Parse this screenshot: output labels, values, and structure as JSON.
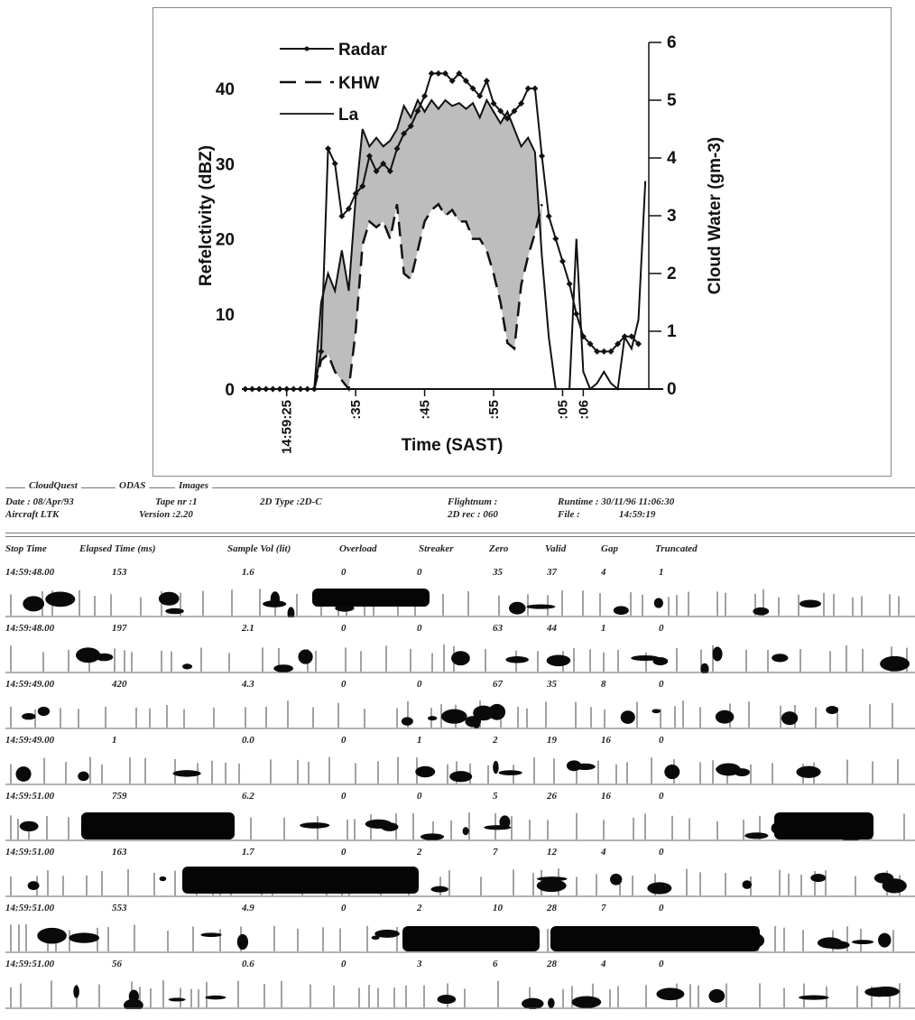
{
  "chart_data": {
    "type": "line",
    "xlabel": "Time (SAST)",
    "ylabel": "Refelctivity (dBZ)",
    "y2label": "Cloud Water (gm-3)",
    "ylim": [
      0,
      45
    ],
    "y2lim": [
      0,
      6
    ],
    "yticks": [
      0,
      10,
      20,
      30,
      40
    ],
    "y2ticks": [
      0,
      1,
      2,
      3,
      4,
      5,
      6
    ],
    "xticks": [
      {
        "label": "14:59:25",
        "t": 6
      },
      {
        "label": ":35",
        "t": 16
      },
      {
        "label": ":45",
        "t": 26
      },
      {
        "label": ":55",
        "t": 36
      },
      {
        "label": ":05",
        "t": 46
      },
      {
        "label": ":06",
        "t": 49
      }
    ],
    "x_range": [
      -0.5,
      58.5
    ],
    "legend_position": "top-left",
    "shaded_between": [
      "KHW",
      "La"
    ],
    "series": [
      {
        "name": "Radar",
        "axis": "left",
        "style": "line-diamond",
        "x": [
          0,
          1,
          2,
          3,
          4,
          5,
          6,
          7,
          8,
          9,
          10,
          11,
          12,
          13,
          14,
          15,
          16,
          17,
          18,
          19,
          20,
          21,
          22,
          23,
          24,
          25,
          26,
          27,
          28,
          29,
          30,
          31,
          32,
          33,
          34,
          35,
          36,
          37,
          38,
          39,
          40,
          41,
          42,
          43,
          44,
          45,
          46,
          47,
          48,
          49,
          50,
          51,
          52,
          53,
          54,
          55,
          56,
          57
        ],
        "y": [
          0,
          0,
          0,
          0,
          0,
          0,
          0,
          0,
          0,
          0,
          0,
          5,
          32,
          30,
          23,
          24,
          26,
          27,
          31,
          29,
          30,
          29,
          32,
          34,
          35,
          37,
          39,
          42,
          42,
          42,
          41,
          42,
          41,
          40,
          39,
          41,
          38,
          37,
          36,
          37,
          38,
          40,
          40,
          31,
          23,
          20,
          17,
          14,
          10,
          7,
          6,
          5,
          5,
          5,
          6,
          7,
          7,
          6
        ]
      },
      {
        "name": "KHW",
        "axis": "right",
        "style": "dash",
        "x": [
          10,
          11,
          12,
          13,
          14,
          15,
          16,
          17,
          18,
          19,
          20,
          21,
          22,
          23,
          24,
          25,
          26,
          27,
          28,
          29,
          30,
          31,
          32,
          33,
          34,
          35,
          36,
          37,
          38,
          39,
          40,
          41,
          42,
          43
        ],
        "y": [
          0,
          0.5,
          0.6,
          0.3,
          0.15,
          0,
          1,
          2.5,
          2.9,
          2.8,
          2.9,
          2.6,
          3.2,
          2,
          1.9,
          2.4,
          2.9,
          3.1,
          3.2,
          3.0,
          3.1,
          2.9,
          2.9,
          2.6,
          2.6,
          2.4,
          2.0,
          1.5,
          0.8,
          0.7,
          1.8,
          2.3,
          2.7,
          3.2
        ]
      },
      {
        "name": "La",
        "axis": "right",
        "style": "solid",
        "x": [
          9,
          10,
          11,
          12,
          13,
          14,
          15,
          16,
          17,
          18,
          19,
          20,
          21,
          22,
          23,
          24,
          25,
          26,
          27,
          28,
          29,
          30,
          31,
          32,
          33,
          34,
          35,
          36,
          37,
          38,
          39,
          40,
          41,
          42,
          43,
          44,
          45,
          46,
          47,
          48,
          49,
          50,
          51,
          52,
          53,
          54,
          55,
          56,
          57,
          58
        ],
        "y": [
          0,
          0,
          1.5,
          2.0,
          1.7,
          2.4,
          1.7,
          3.3,
          4.5,
          4.2,
          4.35,
          4.2,
          4.3,
          4.5,
          4.9,
          4.7,
          5.0,
          4.8,
          5.0,
          4.85,
          5.0,
          4.9,
          4.95,
          4.85,
          4.95,
          4.7,
          5.0,
          4.8,
          4.6,
          4.8,
          4.5,
          4.2,
          4.35,
          4.1,
          2.3,
          0.9,
          0,
          0,
          0,
          2.6,
          0.3,
          0,
          0.1,
          0.3,
          0.1,
          0,
          0.9,
          0.7,
          1.2,
          3.6
        ]
      }
    ]
  },
  "odas": {
    "header": {
      "title_1": "CloudQuest",
      "title_2": "ODAS",
      "title_3": "Images",
      "date": "Date :   08/Apr/93",
      "tape": "Tape nr :1",
      "type_2d": "2D Type :2D-C",
      "flightnum": "Flightnum :",
      "runtime": "Runtime : 30/11/96  11:06:30",
      "aircraft": "Aircraft LTK",
      "version": "Version :2.20",
      "rec_2d": "2D rec :  060",
      "file": "File :",
      "file_time": "14:59:19"
    },
    "columns": [
      "Stop Time",
      "Elapsed Time (ms)",
      "Sample Vol (lit)",
      "Overload",
      "Streaker",
      "Zero",
      "Valid",
      "Gap",
      "Truncated"
    ],
    "rows": [
      {
        "stop": "14:59:48.00",
        "elapsed": "153",
        "vol": "1.6",
        "overload": "0",
        "streaker": "0",
        "zero": "35",
        "valid": "37",
        "gap": "4",
        "trunc": "1"
      },
      {
        "stop": "14:59:48.00",
        "elapsed": "197",
        "vol": "2.1",
        "overload": "0",
        "streaker": "0",
        "zero": "63",
        "valid": "44",
        "gap": "1",
        "trunc": "0"
      },
      {
        "stop": "14:59:49.00",
        "elapsed": "420",
        "vol": "4.3",
        "overload": "0",
        "streaker": "0",
        "zero": "67",
        "valid": "35",
        "gap": "8",
        "trunc": "0"
      },
      {
        "stop": "14:59:49.00",
        "elapsed": "1",
        "vol": "0.0",
        "overload": "0",
        "streaker": "1",
        "zero": "2",
        "valid": "19",
        "gap": "16",
        "trunc": "0"
      },
      {
        "stop": "14:59:51.00",
        "elapsed": "759",
        "vol": "6.2",
        "overload": "0",
        "streaker": "0",
        "zero": "5",
        "valid": "26",
        "gap": "16",
        "trunc": "0"
      },
      {
        "stop": "14:59:51.00",
        "elapsed": "163",
        "vol": "1.7",
        "overload": "0",
        "streaker": "2",
        "zero": "7",
        "valid": "12",
        "gap": "4",
        "trunc": "0"
      },
      {
        "stop": "14:59:51.00",
        "elapsed": "553",
        "vol": "4.9",
        "overload": "0",
        "streaker": "2",
        "zero": "10",
        "valid": "28",
        "gap": "7",
        "trunc": "0"
      },
      {
        "stop": "14:59:51.00",
        "elapsed": "56",
        "vol": "0.6",
        "overload": "0",
        "streaker": "3",
        "zero": "6",
        "valid": "28",
        "gap": "4",
        "trunc": "0"
      }
    ]
  },
  "colors": {
    "ink": "#111111",
    "shade": "#bdbdbd",
    "frame": "#888888"
  }
}
